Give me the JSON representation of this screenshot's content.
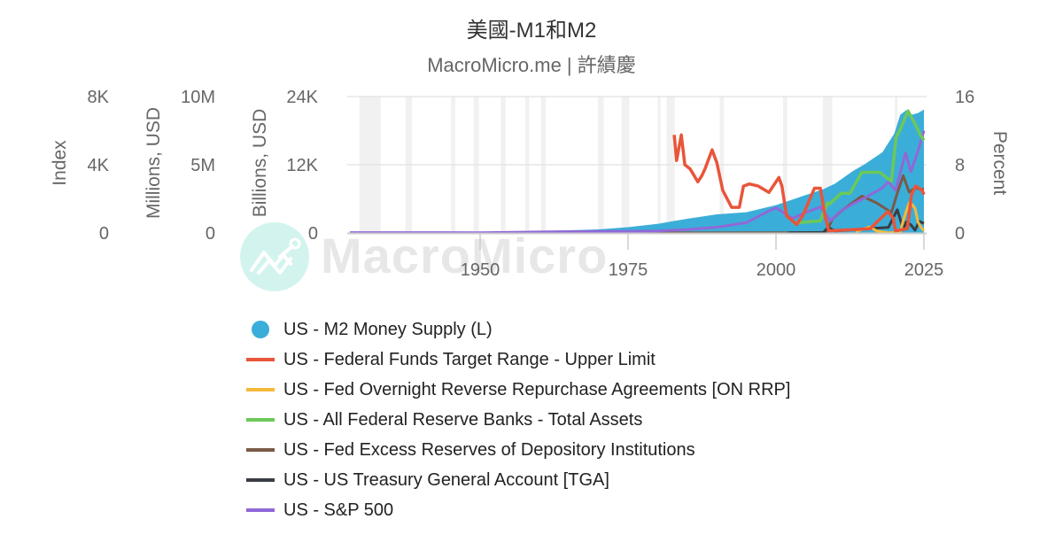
{
  "header": {
    "title": "美國-M1和M2",
    "subtitle": "MacroMicro.me | 許績慶"
  },
  "watermark": {
    "text": "MacroMicro",
    "icon": "macromicro-logo-icon"
  },
  "axes": {
    "index": {
      "title": "Index",
      "ticks": [
        "8K",
        "4K",
        "0"
      ]
    },
    "millions": {
      "title": "Millions, USD",
      "ticks": [
        "10M",
        "5M",
        "0"
      ]
    },
    "billions": {
      "title": "Billions, USD",
      "ticks": [
        "24K",
        "12K",
        "0"
      ]
    },
    "percent": {
      "title": "Percent",
      "ticks": [
        "16",
        "8",
        "0"
      ]
    },
    "x": {
      "ticks": [
        "1950",
        "1975",
        "2000",
        "2025"
      ]
    }
  },
  "legend": [
    {
      "label": "US - M2 Money Supply (L)",
      "color": "#3aaed8",
      "symbol": "dot"
    },
    {
      "label": "US - Federal Funds Target Range - Upper Limit",
      "color": "#e8553a",
      "symbol": "line"
    },
    {
      "label": "US - Fed Overnight Reverse Repurchase Agreements [ON RRP]",
      "color": "#f5b93a",
      "symbol": "line"
    },
    {
      "label": "US - All Federal Reserve Banks - Total Assets",
      "color": "#6cc85a",
      "symbol": "line"
    },
    {
      "label": "US - Fed Excess Reserves of Depository Institutions",
      "color": "#7a5a48",
      "symbol": "line"
    },
    {
      "label": "US - US Treasury General Account [TGA]",
      "color": "#3a3d44",
      "symbol": "line"
    },
    {
      "label": "US - S&P 500",
      "color": "#9068d8",
      "symbol": "line"
    }
  ],
  "chart_data": {
    "type": "line",
    "title": "美國-M1和M2",
    "subtitle": "MacroMicro.me | 許績慶",
    "xlabel": "",
    "x_ticks": [
      1950,
      1975,
      2000,
      2025
    ],
    "xlim": [
      1927,
      2025
    ],
    "y_axes": [
      {
        "name": "Index",
        "range": [
          0,
          8000
        ],
        "ticks": [
          "0",
          "4K",
          "8K"
        ]
      },
      {
        "name": "Millions, USD",
        "range": [
          0,
          10000000
        ],
        "ticks": [
          "0",
          "5M",
          "10M"
        ]
      },
      {
        "name": "Billions, USD",
        "range": [
          0,
          24000
        ],
        "ticks": [
          "0",
          "12K",
          "24K"
        ]
      },
      {
        "name": "Percent",
        "range": [
          0,
          16
        ],
        "ticks": [
          "0",
          "8",
          "16"
        ],
        "side": "right"
      }
    ],
    "grid": true,
    "legend_position": "bottom",
    "recession_bands": [
      [
        1929.6,
        1933.2
      ],
      [
        1937.4,
        1938.5
      ],
      [
        1945.1,
        1945.8
      ],
      [
        1948.9,
        1949.8
      ],
      [
        1953.5,
        1954.3
      ],
      [
        1957.6,
        1958.3
      ],
      [
        1960.3,
        1961.1
      ],
      [
        1969.9,
        1970.9
      ],
      [
        1973.9,
        1975.2
      ],
      [
        1980.0,
        1980.5
      ],
      [
        1981.5,
        1982.9
      ],
      [
        1990.5,
        1991.2
      ],
      [
        2001.2,
        2001.9
      ],
      [
        2007.9,
        2009.5
      ],
      [
        2020.1,
        2020.4
      ]
    ],
    "series": [
      {
        "name": "US - M2 Money Supply (L)",
        "axis": "Billions, USD",
        "type": "area",
        "color": "#3aaed8",
        "x": [
          1959,
          1965,
          1970,
          1975,
          1980,
          1985,
          1990,
          1995,
          2000,
          2005,
          2008,
          2010,
          2013,
          2015,
          2018,
          2020,
          2021,
          2022,
          2023,
          2024,
          2025
        ],
        "values": [
          290,
          460,
          630,
          1020,
          1600,
          2500,
          3280,
          3650,
          4900,
          6650,
          7700,
          8700,
          10900,
          12100,
          14200,
          17500,
          20800,
          21600,
          20800,
          21100,
          21700
        ]
      },
      {
        "name": "US - Federal Funds Target Range - Upper Limit",
        "axis": "Percent",
        "color": "#e8553a",
        "x": [
          1982.8,
          1983.2,
          1984.0,
          1984.6,
          1985.5,
          1986.8,
          1987.5,
          1988.0,
          1989.2,
          1990.0,
          1991.0,
          1992.5,
          1993.8,
          1994.5,
          1995.5,
          1997.0,
          1998.8,
          2000.5,
          2001.0,
          2001.8,
          2003.5,
          2004.5,
          2006.5,
          2007.5,
          2008.3,
          2008.9,
          2015.9,
          2017.0,
          2018.9,
          2019.8,
          2020.2,
          2022.2,
          2022.9,
          2023.6,
          2024.7,
          2025.0
        ],
        "values": [
          11.5,
          8.5,
          11.5,
          8.0,
          7.5,
          6.0,
          6.75,
          7.5,
          9.75,
          8.25,
          5.0,
          3.0,
          3.0,
          5.5,
          5.75,
          5.5,
          4.75,
          6.5,
          5.5,
          2.0,
          1.0,
          2.0,
          5.25,
          5.25,
          2.0,
          0.25,
          0.5,
          1.25,
          2.5,
          1.75,
          0.25,
          0.5,
          4.5,
          5.5,
          5.0,
          4.5
        ]
      },
      {
        "name": "US - Fed Overnight Reverse Repurchase Agreements [ON RRP]",
        "axis": "Millions, USD",
        "color": "#f5b93a",
        "x": [
          2013.5,
          2015.9,
          2017,
          2019,
          2021.0,
          2021.5,
          2022.0,
          2022.5,
          2023.0,
          2023.5,
          2024.0,
          2024.5,
          2025.0
        ],
        "values": [
          100000,
          450000,
          150000,
          10000,
          50000,
          900000,
          1600000,
          2200000,
          2100000,
          1800000,
          800000,
          400000,
          150000
        ]
      },
      {
        "name": "US - All Federal Reserve Banks - Total Assets",
        "axis": "Millions, USD",
        "color": "#6cc85a",
        "x": [
          2002.9,
          2005,
          2007.5,
          2008.7,
          2009.0,
          2011,
          2012.5,
          2014.5,
          2017.5,
          2019.5,
          2020.3,
          2021.0,
          2022.3,
          2023.5,
          2024.5,
          2025.0
        ],
        "values": [
          720000,
          800000,
          880000,
          2200000,
          2100000,
          2900000,
          2900000,
          4450000,
          4450000,
          3800000,
          7000000,
          7600000,
          8950000,
          8000000,
          7100000,
          6800000
        ]
      },
      {
        "name": "US - Fed Excess Reserves of Depository Institutions",
        "axis": "Millions, USD",
        "color": "#7a5a48",
        "x": [
          1959,
          2008.5,
          2009.5,
          2011,
          2014.5,
          2017,
          2019.5,
          2020.5,
          2021.5,
          2022.5,
          2023.5,
          2024.5,
          2025.0
        ],
        "values": [
          2000,
          20000,
          1000000,
          1600000,
          2700000,
          2200000,
          1500000,
          2900000,
          4200000,
          3000000,
          3300000,
          3200000,
          3200000
        ]
      },
      {
        "name": "US - US Treasury General Account [TGA]",
        "axis": "Millions, USD",
        "color": "#3a3d44",
        "x": [
          2002,
          2008,
          2008.8,
          2010,
          2015,
          2019,
          2020.5,
          2021.5,
          2022.0,
          2022.8,
          2023.5,
          2024.2,
          2025.0
        ],
        "values": [
          20000,
          40000,
          400000,
          150000,
          300000,
          400000,
          1700000,
          300000,
          800000,
          600000,
          200000,
          850000,
          700000
        ]
      },
      {
        "name": "US - S&P 500",
        "axis": "Index",
        "color": "#9068d8",
        "x": [
          1928,
          1950,
          1960,
          1970,
          1975,
          1980,
          1985,
          1990,
          1995,
          1998,
          2000.0,
          2002.8,
          2005,
          2007.5,
          2009.2,
          2011,
          2013,
          2015,
          2018,
          2019,
          2020.2,
          2021.9,
          2022.8,
          2024,
          2025.0
        ],
        "values": [
          20,
          17,
          58,
          92,
          90,
          115,
          200,
          330,
          600,
          1150,
          1480,
          850,
          1200,
          1520,
          720,
          1300,
          1700,
          2050,
          2650,
          3000,
          2500,
          4700,
          3600,
          4800,
          6000
        ]
      }
    ]
  }
}
